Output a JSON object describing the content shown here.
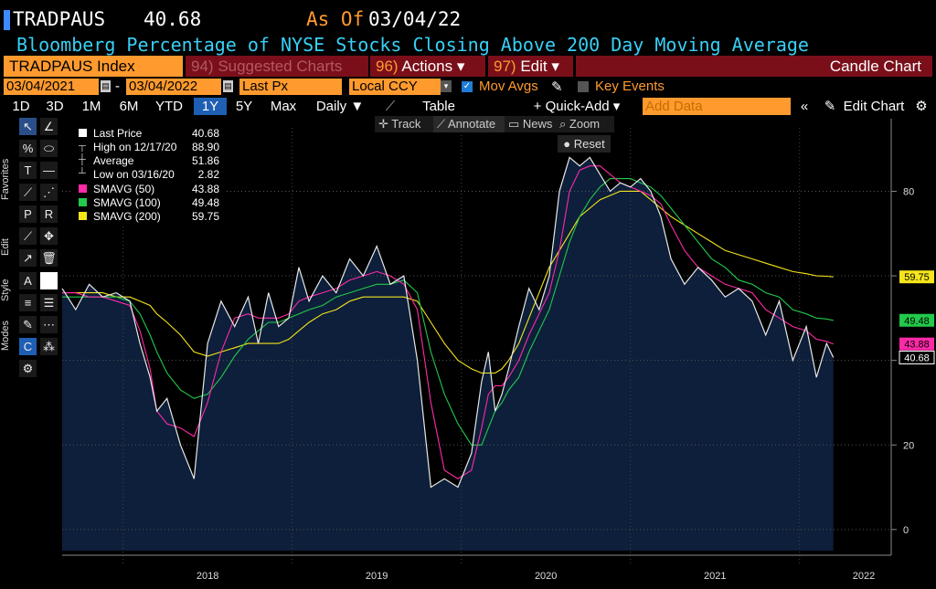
{
  "header": {
    "ticker": "TRADPAUS",
    "last_value": "40.68",
    "as_of_label": "As Of",
    "as_of_date": "03/04/22",
    "subtitle": "Bloomberg Percentage of NYSE Stocks Closing Above 200 Day Moving Average"
  },
  "command_bar": {
    "security": "TRADPAUS Index",
    "suggested_num": "94)",
    "suggested_label": "Suggested Charts",
    "actions_num": "96)",
    "actions_label": "Actions ▾",
    "edit_num": "97)",
    "edit_label": "Edit ▾",
    "chart_type": "Candle Chart"
  },
  "date_row": {
    "start_date": "03/04/2021",
    "end_date": "03/04/2022",
    "field": "Last Px",
    "currency": "Local CCY",
    "mov_avgs_label": "Mov Avgs",
    "mov_avgs_checked": true,
    "key_events_label": "Key Events",
    "key_events_checked": false
  },
  "range_row": {
    "ranges": [
      "1D",
      "3D",
      "1M",
      "6M",
      "YTD",
      "1Y",
      "5Y",
      "Max"
    ],
    "selected": "1Y",
    "period": "Daily ▼",
    "table_label": "Table",
    "quick_add": "+ Quick-Add ▾",
    "add_data_placeholder": "Add Data",
    "edit_chart": "Edit Chart"
  },
  "tool_row": {
    "track": "Track",
    "annotate": "Annotate",
    "news": "News",
    "zoom": "Zoom",
    "reset": "Reset"
  },
  "side_tabs": {
    "favorites": "Favorites",
    "edit": "Edit",
    "style": "Style",
    "modes": "Modes"
  },
  "legend": {
    "rows": [
      {
        "name": "Last Price",
        "value": "40.68",
        "color": "#ffffff"
      },
      {
        "name": "High on 12/17/20",
        "value": "88.90",
        "color": ""
      },
      {
        "name": "Average",
        "value": "51.86",
        "color": ""
      },
      {
        "name": "Low on 03/16/20",
        "value": "2.82",
        "color": ""
      },
      {
        "name": "SMAVG (50)",
        "value": "43.88",
        "color": "#ff2aa8"
      },
      {
        "name": "SMAVG (100)",
        "value": "49.48",
        "color": "#22c94a"
      },
      {
        "name": "SMAVG (200)",
        "value": "59.75",
        "color": "#f5e51b"
      }
    ]
  },
  "colors": {
    "background": "#000000",
    "area_fill": "#0d1f3a",
    "price_line": "#e8e8e8",
    "sma50": "#ff2aa8",
    "sma100": "#22c94a",
    "sma200": "#f5e51b",
    "accent_orange": "#ff9a2e",
    "menu_red": "#7a0f1a",
    "title_cyan": "#38d0f5"
  },
  "chart_data": {
    "type": "line",
    "title": "Bloomberg Percentage of NYSE Stocks Closing Above 200 Day Moving Average",
    "xlabel": "",
    "ylabel": "",
    "x_tick_labels": [
      "2018",
      "2019",
      "2020",
      "2021",
      "2022"
    ],
    "x_tick_dates": [
      2018.0,
      2019.0,
      2020.0,
      2021.0,
      2022.0
    ],
    "y_ticks": [
      0,
      20,
      40,
      60,
      80
    ],
    "ylim": [
      -5,
      95
    ],
    "xlim": [
      2017.64,
      2022.45
    ],
    "grid": true,
    "grid_style": "dotted",
    "y_axis_side": "right",
    "last_value_labels": [
      {
        "text": "59.75",
        "value": 59.75,
        "color": "#f5e51b"
      },
      {
        "text": "49.48",
        "value": 49.48,
        "color": "#22c94a"
      },
      {
        "text": "43.88",
        "value": 43.88,
        "color": "#ff2aa8"
      },
      {
        "text": "40.68",
        "value": 40.68,
        "color": "#ffffff"
      }
    ],
    "x": [
      2017.64,
      2017.72,
      2017.8,
      2017.88,
      2017.96,
      2018.04,
      2018.1,
      2018.16,
      2018.2,
      2018.26,
      2018.34,
      2018.42,
      2018.5,
      2018.58,
      2018.66,
      2018.74,
      2018.8,
      2018.86,
      2018.92,
      2018.98,
      2019.04,
      2019.1,
      2019.18,
      2019.26,
      2019.34,
      2019.42,
      2019.5,
      2019.58,
      2019.66,
      2019.74,
      2019.82,
      2019.9,
      2019.98,
      2020.06,
      2020.12,
      2020.16,
      2020.2,
      2020.24,
      2020.28,
      2020.34,
      2020.4,
      2020.46,
      2020.52,
      2020.58,
      2020.64,
      2020.7,
      2020.76,
      2020.82,
      2020.88,
      2020.94,
      2021.0,
      2021.06,
      2021.12,
      2021.18,
      2021.24,
      2021.32,
      2021.4,
      2021.48,
      2021.56,
      2021.64,
      2021.72,
      2021.8,
      2021.88,
      2021.96,
      2022.04,
      2022.1,
      2022.16,
      2022.2
    ],
    "series": [
      {
        "name": "Last Price",
        "color": "#e8e8e8",
        "values": [
          57,
          52,
          58,
          55,
          56,
          54,
          44,
          36,
          28,
          31,
          20,
          12,
          44,
          54,
          48,
          55,
          44,
          56,
          48,
          50,
          62,
          54,
          60,
          56,
          64,
          60,
          67,
          58,
          60,
          40,
          10,
          12,
          10,
          18,
          35,
          42,
          28,
          32,
          38,
          48,
          57,
          52,
          60,
          80,
          88,
          86,
          88,
          84,
          80,
          82,
          81,
          83,
          80,
          74,
          64,
          58,
          62,
          59,
          55,
          57,
          54,
          46,
          54,
          40,
          48,
          36,
          44,
          40.68
        ]
      },
      {
        "name": "SMAVG (50)",
        "color": "#ff2aa8",
        "values": [
          56,
          56,
          55,
          55,
          54,
          53,
          47,
          38,
          28,
          25,
          24,
          22,
          30,
          42,
          50,
          51,
          50,
          50,
          50,
          51,
          54,
          55,
          56,
          57,
          59,
          60,
          61,
          60,
          58,
          52,
          30,
          14,
          12,
          14,
          24,
          32,
          34,
          34,
          36,
          40,
          46,
          51,
          56,
          66,
          80,
          85,
          86,
          86,
          84,
          82,
          81,
          80,
          79,
          77,
          72,
          66,
          62,
          60,
          58,
          57,
          56,
          52,
          50,
          48,
          47,
          45,
          44.5,
          43.88
        ]
      },
      {
        "name": "SMAVG (100)",
        "color": "#22c94a",
        "values": [
          55,
          55,
          55,
          55,
          55,
          54,
          51,
          46,
          42,
          37,
          33,
          31,
          32,
          36,
          41,
          45,
          47,
          49,
          49,
          50,
          51,
          52,
          53,
          55,
          56,
          57,
          58,
          58,
          59,
          56,
          42,
          32,
          25,
          20,
          20,
          24,
          28,
          30,
          33,
          36,
          42,
          47,
          52,
          60,
          68,
          74,
          78,
          81,
          83,
          83,
          83,
          82,
          81,
          79,
          76,
          72,
          68,
          64,
          62,
          59,
          58,
          56,
          55,
          52,
          51,
          50,
          49.8,
          49.48
        ]
      },
      {
        "name": "SMAVG (200)",
        "color": "#f5e51b",
        "values": [
          56,
          56,
          56,
          56,
          55,
          55,
          54,
          53,
          51,
          49,
          46,
          42,
          41,
          42,
          43,
          44,
          44,
          44,
          44,
          45,
          47,
          49,
          51,
          52,
          54,
          55,
          55,
          55,
          55,
          54,
          49,
          44,
          40,
          38,
          37,
          37,
          37,
          38,
          40,
          44,
          50,
          56,
          62,
          66,
          70,
          74,
          76,
          78,
          79,
          80,
          80,
          80,
          78,
          76,
          74,
          72,
          70,
          68,
          66,
          65,
          64,
          63,
          62,
          61,
          60.5,
          60,
          59.9,
          59.75
        ]
      }
    ]
  }
}
